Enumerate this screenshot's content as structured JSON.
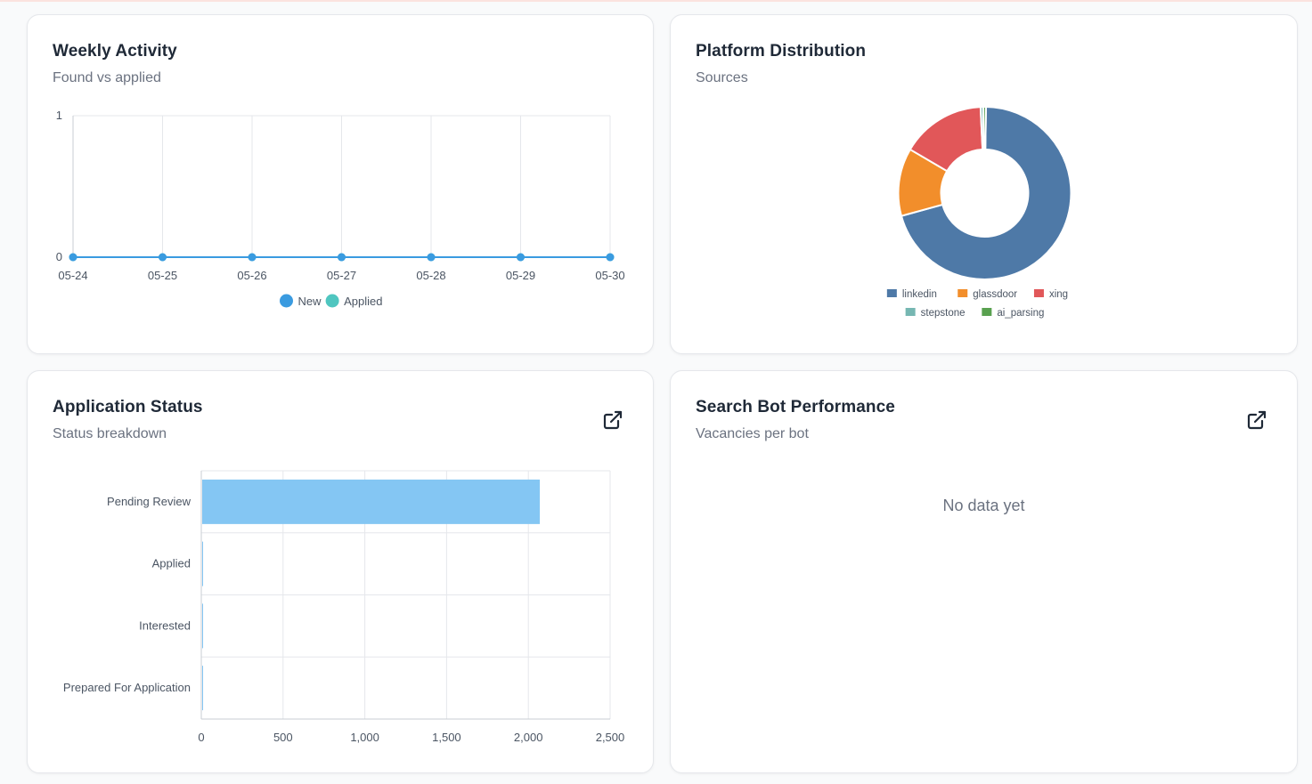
{
  "colors": {
    "new": "#3a9be0",
    "applied": "#4fc6c0",
    "bar": "#84c6f3",
    "grid": "#e5e7eb",
    "axis": "#c8cdd3",
    "tick": "#4b5563"
  },
  "cards": {
    "weekly": {
      "title": "Weekly Activity",
      "subtitle": "Found vs applied"
    },
    "platform": {
      "title": "Platform Distribution",
      "subtitle": "Sources"
    },
    "status": {
      "title": "Application Status",
      "subtitle": "Status breakdown",
      "open_icon": "external-link-icon"
    },
    "bots": {
      "title": "Search Bot Performance",
      "subtitle": "Vacancies per bot",
      "open_icon": "external-link-icon",
      "empty_text": "No data yet"
    }
  },
  "chart_data": [
    {
      "id": "weekly",
      "type": "line",
      "x": [
        "05-24",
        "05-25",
        "05-26",
        "05-27",
        "05-28",
        "05-29",
        "05-30"
      ],
      "series": [
        {
          "name": "New",
          "values": [
            0,
            0,
            0,
            0,
            0,
            0,
            0
          ],
          "color": "#3a9be0"
        },
        {
          "name": "Applied",
          "values": [
            0,
            0,
            0,
            0,
            0,
            0,
            0
          ],
          "color": "#4fc6c0"
        }
      ],
      "ylim": [
        0,
        1
      ],
      "yticks": [
        "0",
        "1"
      ],
      "grid": "vertical",
      "legend": "bottom"
    },
    {
      "id": "platform",
      "type": "pie",
      "donut": true,
      "slices": [
        {
          "name": "linkedin",
          "value": 70.5,
          "color": "#4e79a7"
        },
        {
          "name": "glassdoor",
          "value": 12.7,
          "color": "#f28e2b"
        },
        {
          "name": "xing",
          "value": 15.8,
          "color": "#e15759"
        },
        {
          "name": "stepstone",
          "value": 0.5,
          "color": "#76b7b2"
        },
        {
          "name": "ai_parsing",
          "value": 0.5,
          "color": "#59a14f"
        }
      ],
      "legend": "bottom"
    },
    {
      "id": "status",
      "type": "bar",
      "orientation": "horizontal",
      "categories": [
        "Pending Review",
        "Applied",
        "Interested",
        "Prepared For Application"
      ],
      "values": [
        2070,
        8,
        2,
        3
      ],
      "xlim": [
        0,
        2500
      ],
      "xticks": [
        "0",
        "500",
        "1,000",
        "1,500",
        "2,000",
        "2,500"
      ],
      "grid": "both"
    }
  ]
}
